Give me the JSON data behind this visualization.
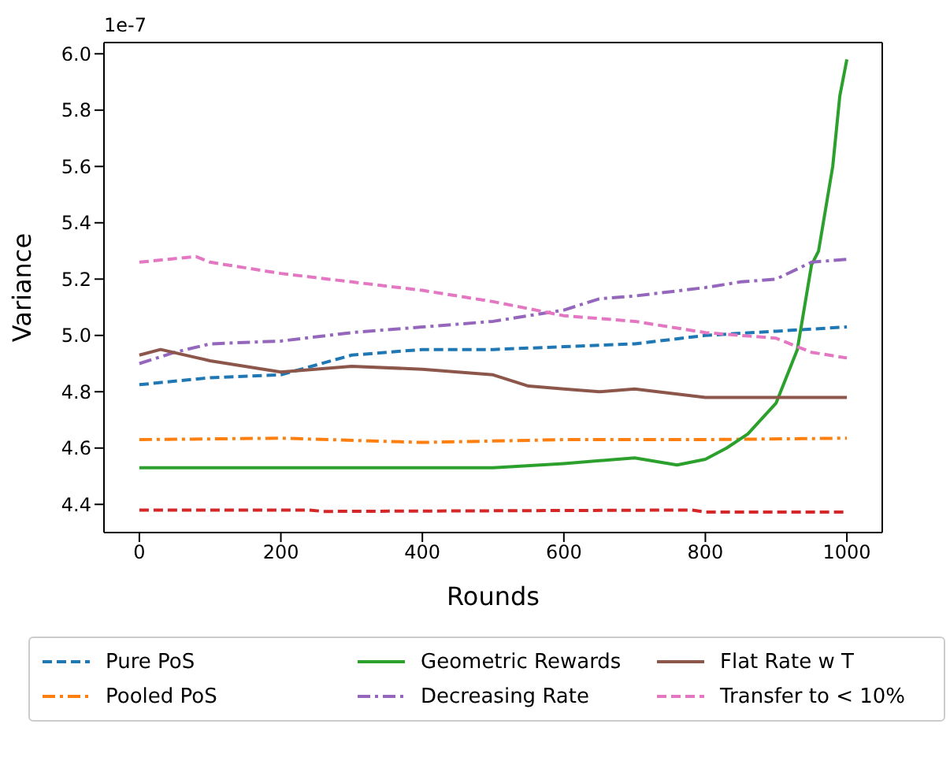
{
  "chart_data": {
    "type": "line",
    "xlabel": "Rounds",
    "ylabel": "Variance",
    "annotations": [
      "1e-7"
    ],
    "xlim": [
      -50,
      1050
    ],
    "xticks": [
      0,
      200,
      400,
      600,
      800,
      1000
    ],
    "ylim": [
      4.3,
      6.04
    ],
    "yticks": [
      {
        "value": 4.4,
        "label": "4.4"
      },
      {
        "value": 4.6,
        "label": "4.6"
      },
      {
        "value": 4.8,
        "label": "4.8"
      },
      {
        "value": 5.0,
        "label": "5.0"
      },
      {
        "value": 5.2,
        "label": "5.2"
      },
      {
        "value": 5.4,
        "label": "5.4"
      },
      {
        "value": 5.6,
        "label": "5.6"
      },
      {
        "value": 5.8,
        "label": "5.8"
      },
      {
        "value": 6.0,
        "label": "6.0"
      }
    ],
    "grid": false,
    "legend": "bottom",
    "marker": "none",
    "series": [
      {
        "name": "Pure PoS",
        "color": "#1f77b4",
        "line_style": "dashed",
        "x": [
          0,
          100,
          200,
          300,
          400,
          500,
          600,
          700,
          800,
          900,
          1000
        ],
        "values": [
          4.825,
          4.85,
          4.86,
          4.93,
          4.95,
          4.95,
          4.96,
          4.97,
          5.0,
          5.015,
          5.03
        ]
      },
      {
        "name": "Pooled PoS",
        "color": "#ff7f0e",
        "line_style": "dashdot",
        "x": [
          0,
          200,
          400,
          600,
          800,
          1000
        ],
        "values": [
          4.63,
          4.635,
          4.62,
          4.63,
          4.63,
          4.635
        ]
      },
      {
        "name": "Geometric Rewards",
        "color": "#2ca02c",
        "line_style": "solid",
        "x": [
          0,
          500,
          600,
          700,
          760,
          800,
          830,
          860,
          900,
          930,
          950,
          960,
          980,
          990,
          1000
        ],
        "values": [
          4.53,
          4.53,
          4.545,
          4.565,
          4.54,
          4.56,
          4.6,
          4.65,
          4.76,
          4.95,
          5.25,
          5.3,
          5.6,
          5.85,
          5.98
        ]
      },
      {
        "color": "#d62728",
        "line_style": "dashed",
        "x": [
          0,
          240,
          260,
          780,
          800,
          1000
        ],
        "values": [
          4.38,
          4.38,
          4.375,
          4.38,
          4.373,
          4.373
        ]
      },
      {
        "name": "Decreasing Rate",
        "color": "#9467bd",
        "line_style": "dashdot",
        "x": [
          0,
          50,
          100,
          200,
          300,
          400,
          500,
          600,
          650,
          700,
          800,
          850,
          900,
          950,
          1000
        ],
        "values": [
          4.9,
          4.94,
          4.97,
          4.98,
          5.01,
          5.03,
          5.05,
          5.09,
          5.13,
          5.14,
          5.17,
          5.19,
          5.2,
          5.26,
          5.27
        ]
      },
      {
        "name": "Flat Rate w T",
        "color": "#8c564b",
        "line_style": "solid",
        "x": [
          0,
          30,
          100,
          200,
          300,
          400,
          500,
          550,
          600,
          650,
          700,
          800,
          900,
          1000
        ],
        "values": [
          4.93,
          4.95,
          4.91,
          4.87,
          4.89,
          4.88,
          4.86,
          4.82,
          4.81,
          4.8,
          4.81,
          4.78,
          4.78,
          4.78
        ]
      },
      {
        "name": "Transfer to < 10%",
        "color": "#e377c2",
        "line_style": "dashed",
        "x": [
          0,
          80,
          100,
          200,
          300,
          400,
          500,
          600,
          700,
          800,
          900,
          950,
          1000
        ],
        "values": [
          5.26,
          5.28,
          5.26,
          5.22,
          5.19,
          5.16,
          5.12,
          5.07,
          5.05,
          5.01,
          4.99,
          4.94,
          4.92
        ]
      }
    ]
  }
}
